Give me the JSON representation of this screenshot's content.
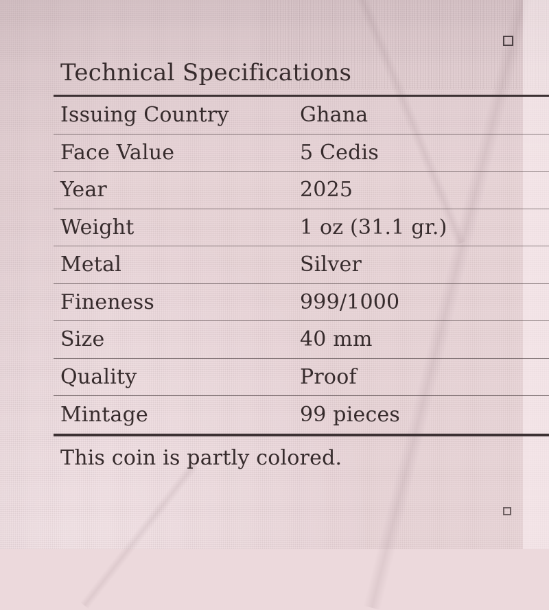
{
  "page": {
    "title": "Technical Specifications",
    "footer_note": "This coin is partly colored."
  },
  "spec_table": {
    "rows": [
      {
        "label": "Issuing Country",
        "value": "Ghana"
      },
      {
        "label": "Face Value",
        "value": "5 Cedis"
      },
      {
        "label": "Year",
        "value": "2025"
      },
      {
        "label": "Weight",
        "value": "1 oz (31.1 gr.)"
      },
      {
        "label": "Metal",
        "value": "Silver"
      },
      {
        "label": "Fineness",
        "value": "999/1000"
      },
      {
        "label": "Size",
        "value": "40 mm"
      },
      {
        "label": "Quality",
        "value": "Proof"
      },
      {
        "label": "Mintage",
        "value": "99 pieces"
      }
    ]
  },
  "decorations": {
    "registration_marks": [
      "top-right",
      "bottom-right"
    ]
  },
  "colors": {
    "paper": "#ecd9dc",
    "ink": "#362b2c",
    "rule": "#3c3133"
  }
}
